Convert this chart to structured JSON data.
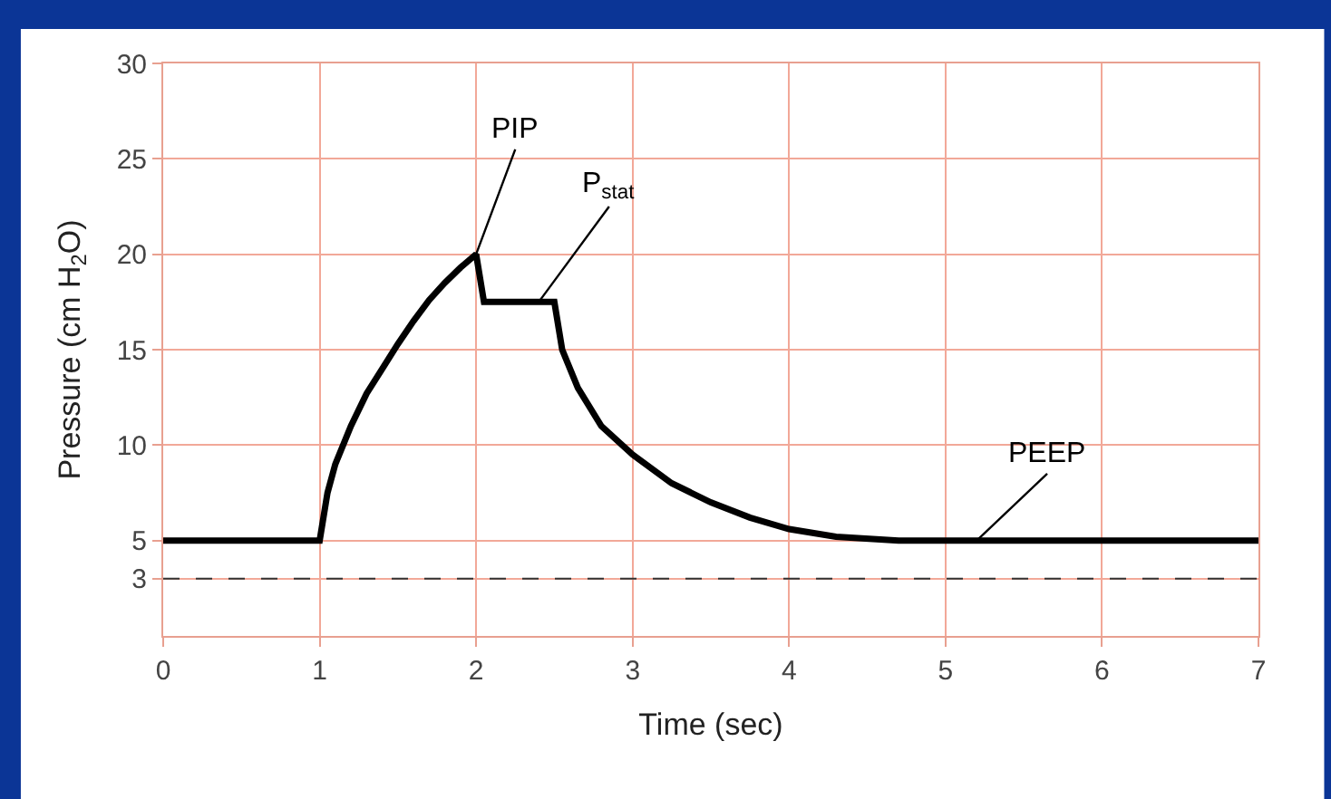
{
  "chart_data": {
    "type": "line",
    "xlabel": "Time (sec)",
    "ylabel": "Pressure (cm H$_{2}$O)",
    "x": [
      0,
      1,
      1.05,
      1.1,
      1.2,
      1.3,
      1.4,
      1.5,
      1.6,
      1.7,
      1.8,
      1.9,
      2,
      2.05,
      2.5,
      2.55,
      2.65,
      2.8,
      3,
      3.25,
      3.5,
      3.75,
      4,
      4.3,
      4.7,
      7
    ],
    "series": [
      {
        "color": "#000000",
        "values": [
          5,
          5,
          7.5,
          9,
          11,
          12.7,
          14,
          15.3,
          16.5,
          17.6,
          18.5,
          19.3,
          20,
          17.5,
          17.5,
          15,
          13,
          11,
          9.5,
          8,
          7,
          6.2,
          5.6,
          5.2,
          5,
          5
        ]
      }
    ],
    "xlim": [
      0,
      7
    ],
    "xticks": [
      0,
      1,
      2,
      3,
      4,
      5,
      6,
      7
    ],
    "ylim": [
      0,
      30
    ],
    "yticks": [
      3,
      5,
      10,
      15,
      20,
      25,
      30
    ],
    "ref_lines": [
      {
        "axis": "y",
        "value": 3,
        "color": "#333333",
        "line_style": "dashed"
      }
    ],
    "annotations": [
      {
        "text": "PIP",
        "x": 2,
        "y": 20
      },
      {
        "text": "P$_{stat}$",
        "x": 2.4,
        "y": 17.5
      },
      {
        "text": "PEEP",
        "x": 5.2,
        "y": 5
      }
    ],
    "grid": true,
    "marker": "none",
    "line_style": "solid",
    "legend": false
  }
}
